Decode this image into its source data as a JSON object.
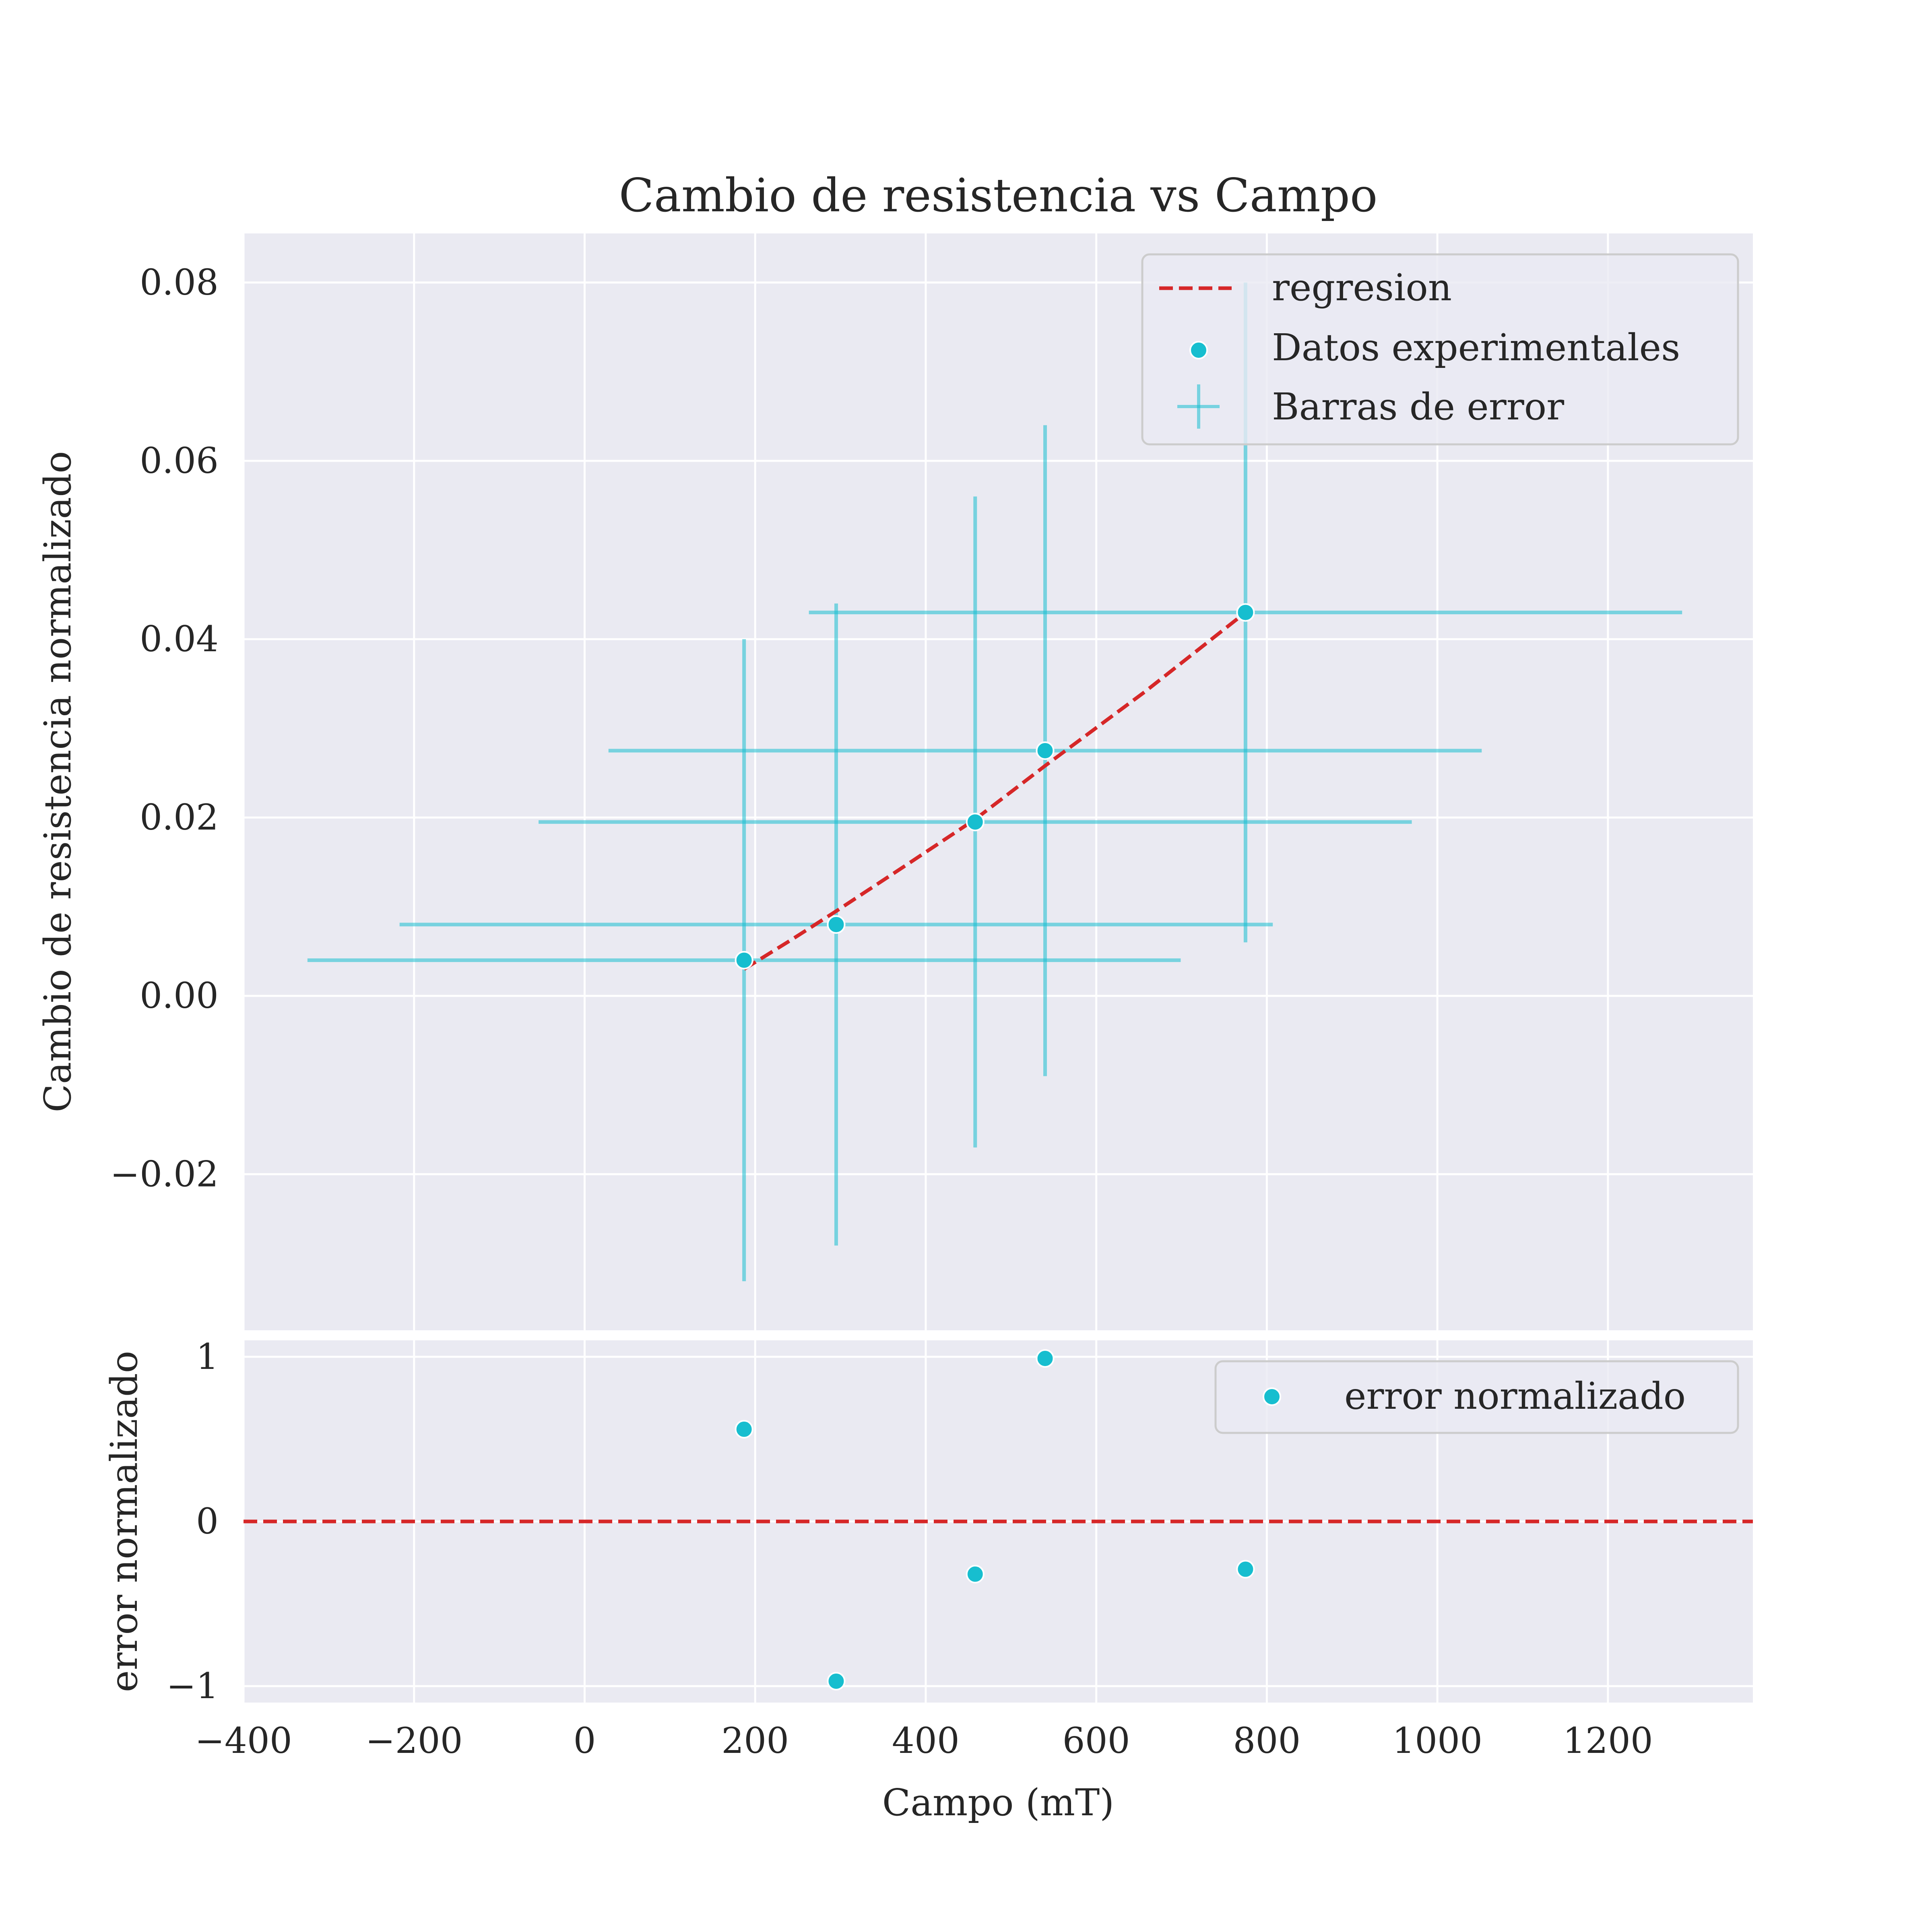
{
  "colors": {
    "plot_background": "#eaeaf2",
    "grid": "#ffffff",
    "data": "#17becf",
    "errorbar": "#17becf",
    "regression": "#d62728",
    "text": "#262626"
  },
  "chart_data": [
    {
      "type": "scatter",
      "title": "Cambio de resistencia vs Campo",
      "xlabel": "",
      "ylabel": "Cambio de resistencia normalizado",
      "xlim": [
        -400,
        1370
      ],
      "ylim": [
        -0.0375,
        0.0855
      ],
      "grid": true,
      "legend_position": "top-right",
      "x_ticks": [
        -400,
        -200,
        0,
        200,
        400,
        600,
        800,
        1000,
        1200
      ],
      "y_ticks": [
        -0.02,
        0.0,
        0.02,
        0.04,
        0.06,
        0.08
      ],
      "y_tick_labels": [
        "−0.02",
        "0.00",
        "0.02",
        "0.04",
        "0.06",
        "0.08"
      ],
      "legend": [
        "regresion",
        "Datos experimentales",
        "Barras de error"
      ],
      "series": [
        {
          "name": "Datos experimentales",
          "kind": "scatter",
          "x": [
            187,
            295,
            458,
            540,
            775
          ],
          "y": [
            0.004,
            0.008,
            0.0195,
            0.0275,
            0.043
          ]
        },
        {
          "name": "Barras de error",
          "kind": "errorbar",
          "x": [
            187,
            295,
            458,
            540,
            775
          ],
          "y": [
            0.004,
            0.008,
            0.0195,
            0.0275,
            0.043
          ],
          "xerr": [
            512,
            512,
            512,
            512,
            512
          ],
          "yerr": [
            0.036,
            0.036,
            0.0365,
            0.0365,
            0.037
          ]
        },
        {
          "name": "regresion",
          "kind": "line",
          "style": "dashed",
          "x": [
            187,
            241,
            295,
            376,
            458,
            499,
            540,
            657,
            775
          ],
          "y": [
            0.003,
            0.0062,
            0.0095,
            0.0146,
            0.0198,
            0.0228,
            0.0258,
            0.0341,
            0.043
          ]
        }
      ]
    },
    {
      "type": "scatter",
      "title": "",
      "xlabel": "Campo (mT)",
      "ylabel": "error normalizado",
      "xlim": [
        -400,
        1370
      ],
      "ylim": [
        -1.1,
        1.1
      ],
      "grid": true,
      "legend_position": "top-right",
      "x_ticks": [
        -400,
        -200,
        0,
        200,
        400,
        600,
        800,
        1000,
        1200
      ],
      "x_tick_labels": [
        "−400",
        "−200",
        "0",
        "200",
        "400",
        "600",
        "800",
        "1000",
        "1200"
      ],
      "y_ticks": [
        -1,
        0,
        1
      ],
      "y_tick_labels": [
        "−1",
        "0",
        "1"
      ],
      "legend": [
        "error normalizado"
      ],
      "series": [
        {
          "name": "error normalizado",
          "kind": "scatter",
          "x": [
            187,
            295,
            458,
            540,
            775
          ],
          "y": [
            0.56,
            -0.97,
            -0.32,
            0.99,
            -0.29
          ]
        },
        {
          "kind": "hline",
          "style": "dashed",
          "y": 0
        }
      ]
    }
  ]
}
